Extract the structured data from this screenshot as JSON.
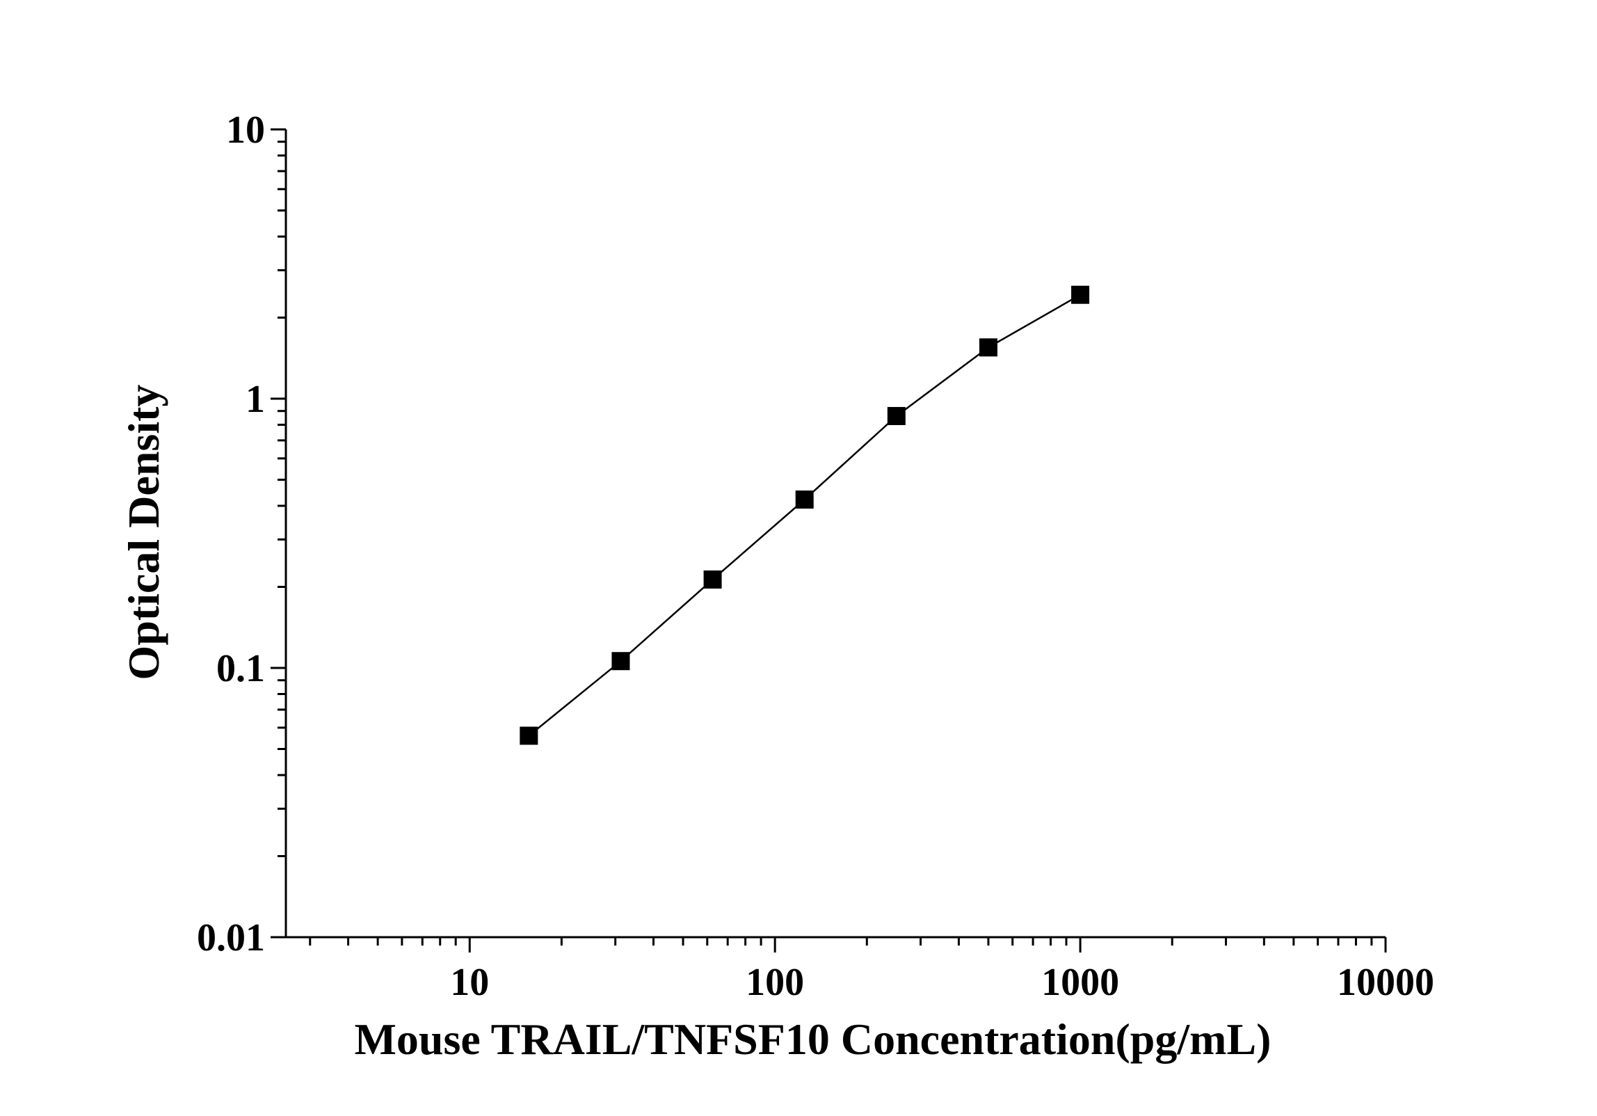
{
  "chart_data": {
    "type": "line",
    "xlabel": "Mouse TRAIL/TNFSF10 Concentration(pg/mL)",
    "ylabel": "Optical Density",
    "x_scale": "log",
    "y_scale": "log",
    "xlim": [
      2.5,
      10000
    ],
    "ylim": [
      0.01,
      10
    ],
    "x_ticks": [
      10,
      100,
      1000,
      10000
    ],
    "x_tick_labels": [
      "10",
      "100",
      "1000",
      "10000"
    ],
    "y_ticks": [
      0.01,
      0.1,
      1,
      10
    ],
    "y_tick_labels": [
      "0.01",
      "0.1",
      "1",
      "10"
    ],
    "grid": false,
    "legend": "none",
    "marker": "square",
    "series": [
      {
        "x": [
          15.625,
          31.25,
          62.5,
          125,
          250,
          500,
          1000
        ],
        "y": [
          0.056,
          0.106,
          0.213,
          0.422,
          0.862,
          1.55,
          2.431
        ]
      }
    ]
  }
}
